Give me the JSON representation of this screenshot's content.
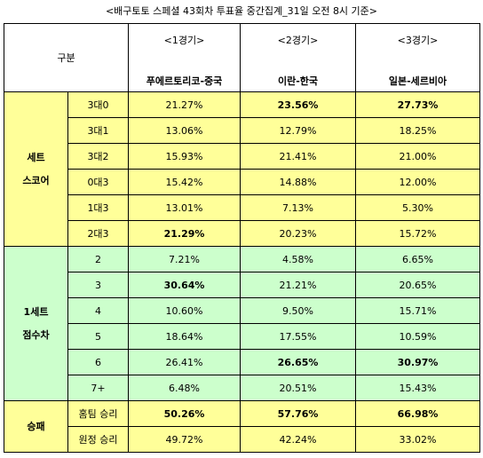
{
  "header": {
    "title": "<배구토토 스페셜 43회차 투표율 중간집계_31일 오전 8시 기준>"
  },
  "table": {
    "corner": "구분",
    "games": [
      {
        "game": "<1경기>",
        "match": "푸에르토리코-중국"
      },
      {
        "game": "<2경기>",
        "match": "이란-한국"
      },
      {
        "game": "<3경기>",
        "match": "일본-세르비아"
      }
    ],
    "groups": [
      {
        "label": [
          "세트",
          "스코어"
        ],
        "color": "#ffff99",
        "rows": [
          {
            "label": "3대0",
            "cells": [
              "21.27%",
              "23.56%",
              "27.73%"
            ],
            "bold": [
              false,
              true,
              true
            ]
          },
          {
            "label": "3대1",
            "cells": [
              "13.06%",
              "12.79%",
              "18.25%"
            ],
            "bold": [
              false,
              false,
              false
            ]
          },
          {
            "label": "3대2",
            "cells": [
              "15.93%",
              "21.41%",
              "21.00%"
            ],
            "bold": [
              false,
              false,
              false
            ]
          },
          {
            "label": "0대3",
            "cells": [
              "15.42%",
              "14.88%",
              "12.00%"
            ],
            "bold": [
              false,
              false,
              false
            ]
          },
          {
            "label": "1대3",
            "cells": [
              "13.01%",
              "7.13%",
              "5.30%"
            ],
            "bold": [
              false,
              false,
              false
            ]
          },
          {
            "label": "2대3",
            "cells": [
              "21.29%",
              "20.23%",
              "15.72%"
            ],
            "bold": [
              true,
              false,
              false
            ]
          }
        ]
      },
      {
        "label": [
          "1세트",
          "점수차"
        ],
        "color": "#ccffcc",
        "rows": [
          {
            "label": "2",
            "cells": [
              "7.21%",
              "4.58%",
              "6.65%"
            ],
            "bold": [
              false,
              false,
              false
            ]
          },
          {
            "label": "3",
            "cells": [
              "30.64%",
              "21.21%",
              "20.65%"
            ],
            "bold": [
              true,
              false,
              false
            ]
          },
          {
            "label": "4",
            "cells": [
              "10.60%",
              "9.50%",
              "15.71%"
            ],
            "bold": [
              false,
              false,
              false
            ]
          },
          {
            "label": "5",
            "cells": [
              "18.64%",
              "17.55%",
              "10.59%"
            ],
            "bold": [
              false,
              false,
              false
            ]
          },
          {
            "label": "6",
            "cells": [
              "26.41%",
              "26.65%",
              "30.97%"
            ],
            "bold": [
              false,
              true,
              true
            ]
          },
          {
            "label": "7+",
            "cells": [
              "6.48%",
              "20.51%",
              "15.43%"
            ],
            "bold": [
              false,
              false,
              false
            ]
          }
        ]
      },
      {
        "label": [
          "승패"
        ],
        "color": "#ffff99",
        "rows": [
          {
            "label": "홈팀 승리",
            "cells": [
              "50.26%",
              "57.76%",
              "66.98%"
            ],
            "bold": [
              true,
              true,
              true
            ]
          },
          {
            "label": "원정 승리",
            "cells": [
              "49.72%",
              "42.24%",
              "33.02%"
            ],
            "bold": [
              false,
              false,
              false
            ]
          }
        ]
      }
    ]
  }
}
